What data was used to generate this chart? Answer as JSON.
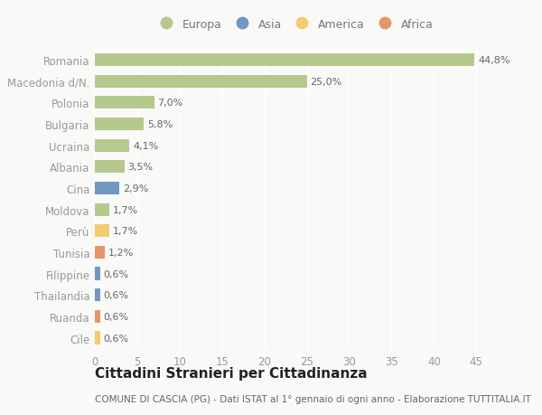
{
  "categories": [
    "Romania",
    "Macedonia d/N.",
    "Polonia",
    "Bulgaria",
    "Ucraina",
    "Albania",
    "Cina",
    "Moldova",
    "Perù",
    "Tunisia",
    "Filippine",
    "Thailandia",
    "Ruanda",
    "Cile"
  ],
  "values": [
    44.8,
    25.0,
    7.0,
    5.8,
    4.1,
    3.5,
    2.9,
    1.7,
    1.7,
    1.2,
    0.6,
    0.6,
    0.6,
    0.6
  ],
  "labels": [
    "44,8%",
    "25,0%",
    "7,0%",
    "5,8%",
    "4,1%",
    "3,5%",
    "2,9%",
    "1,7%",
    "1,7%",
    "1,2%",
    "0,6%",
    "0,6%",
    "0,6%",
    "0,6%"
  ],
  "continents": [
    "Europa",
    "Europa",
    "Europa",
    "Europa",
    "Europa",
    "Europa",
    "Asia",
    "Europa",
    "America",
    "Africa",
    "Asia",
    "Asia",
    "Africa",
    "America"
  ],
  "colors": {
    "Europa": "#b5c98e",
    "Asia": "#7098c0",
    "America": "#f2cc6e",
    "Africa": "#e5956a"
  },
  "legend_order": [
    "Europa",
    "Asia",
    "America",
    "Africa"
  ],
  "legend_colors": [
    "#b5c98e",
    "#7098c0",
    "#f2cc6e",
    "#e5956a"
  ],
  "title": "Cittadini Stranieri per Cittadinanza",
  "subtitle": "COMUNE DI CASCIA (PG) - Dati ISTAT al 1° gennaio di ogni anno - Elaborazione TUTTITALIA.IT",
  "xlim": [
    0,
    47
  ],
  "xticks": [
    0,
    5,
    10,
    15,
    20,
    25,
    30,
    35,
    40,
    45
  ],
  "background_color": "#f9f9f7",
  "plot_bg_color": "#f9f9f7",
  "bar_height": 0.6,
  "grid_color": "#ffffff",
  "tick_label_color": "#999999",
  "bar_label_color": "#666666",
  "title_fontsize": 11,
  "subtitle_fontsize": 7.5,
  "tick_fontsize": 8.5
}
